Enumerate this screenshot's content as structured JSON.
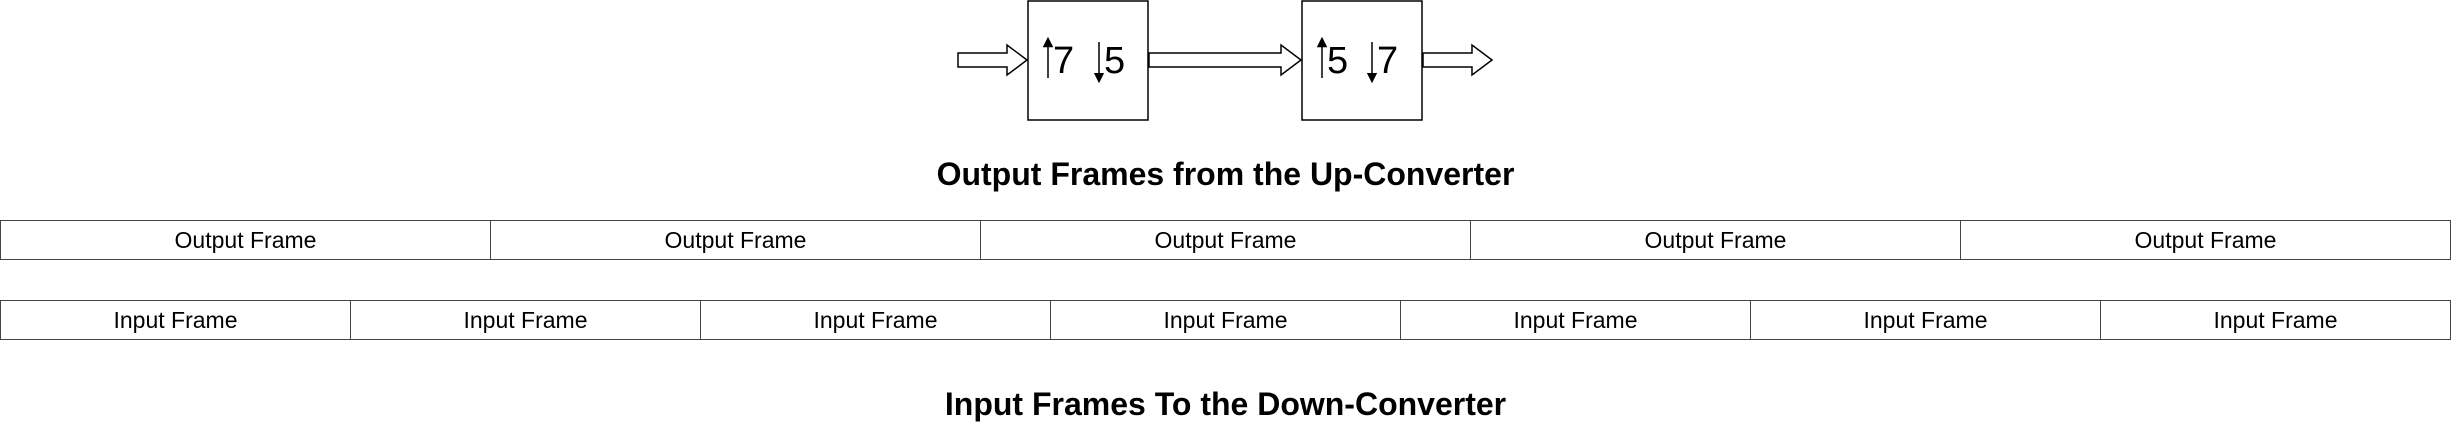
{
  "converters": [
    {
      "up_factor": "7",
      "down_factor": "5"
    },
    {
      "up_factor": "5",
      "down_factor": "7"
    }
  ],
  "output_title": "Output Frames from the Up-Converter",
  "output_frames": [
    "Output Frame",
    "Output Frame",
    "Output Frame",
    "Output Frame",
    "Output Frame"
  ],
  "input_frames": [
    "Input Frame",
    "Input Frame",
    "Input Frame",
    "Input Frame",
    "Input Frame",
    "Input Frame",
    "Input Frame"
  ],
  "input_title": "Input Frames To the Down-Converter",
  "colors": {
    "stroke": "#000000",
    "fill": "#ffffff"
  }
}
